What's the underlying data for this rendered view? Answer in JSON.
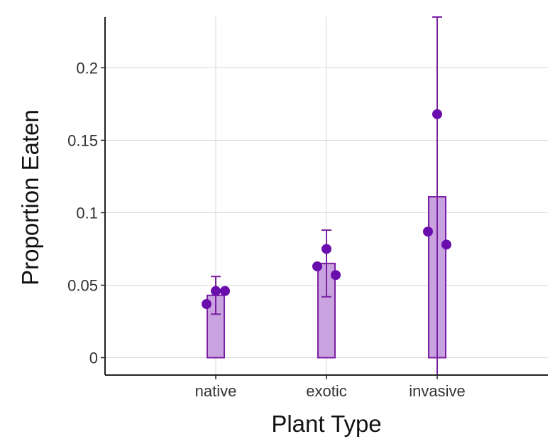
{
  "chart_data": {
    "type": "bar",
    "xlabel": "Plant Type",
    "ylabel": "Proportion Eaten",
    "ylim": [
      -0.012,
      0.235
    ],
    "yticks": [
      0,
      0.05,
      0.1,
      0.15,
      0.2
    ],
    "ytick_labels": [
      "0",
      "0.05",
      "0.1",
      "0.15",
      "0.2"
    ],
    "categories": [
      "native",
      "exotic",
      "invasive"
    ],
    "bars": [
      {
        "category": "native",
        "mean": 0.043,
        "err_low": 0.03,
        "err_high": 0.056
      },
      {
        "category": "exotic",
        "mean": 0.065,
        "err_low": 0.042,
        "err_high": 0.088
      },
      {
        "category": "invasive",
        "mean": 0.111,
        "err_low": -0.012,
        "err_high": 0.235
      }
    ],
    "points": [
      {
        "category": "native",
        "y": 0.037
      },
      {
        "category": "native",
        "y": 0.046
      },
      {
        "category": "native",
        "y": 0.046
      },
      {
        "category": "exotic",
        "y": 0.063
      },
      {
        "category": "exotic",
        "y": 0.075
      },
      {
        "category": "exotic",
        "y": 0.057
      },
      {
        "category": "invasive",
        "y": 0.087
      },
      {
        "category": "invasive",
        "y": 0.168
      },
      {
        "category": "invasive",
        "y": 0.078
      }
    ],
    "grid": true,
    "colors": {
      "bar_fill": "#c9a3df",
      "bar_stroke": "#7b1fa2",
      "point": "#6a0dad",
      "errorbar": "#7b1fa2",
      "grid": "#d9d9d9",
      "axis": "#222222"
    }
  }
}
